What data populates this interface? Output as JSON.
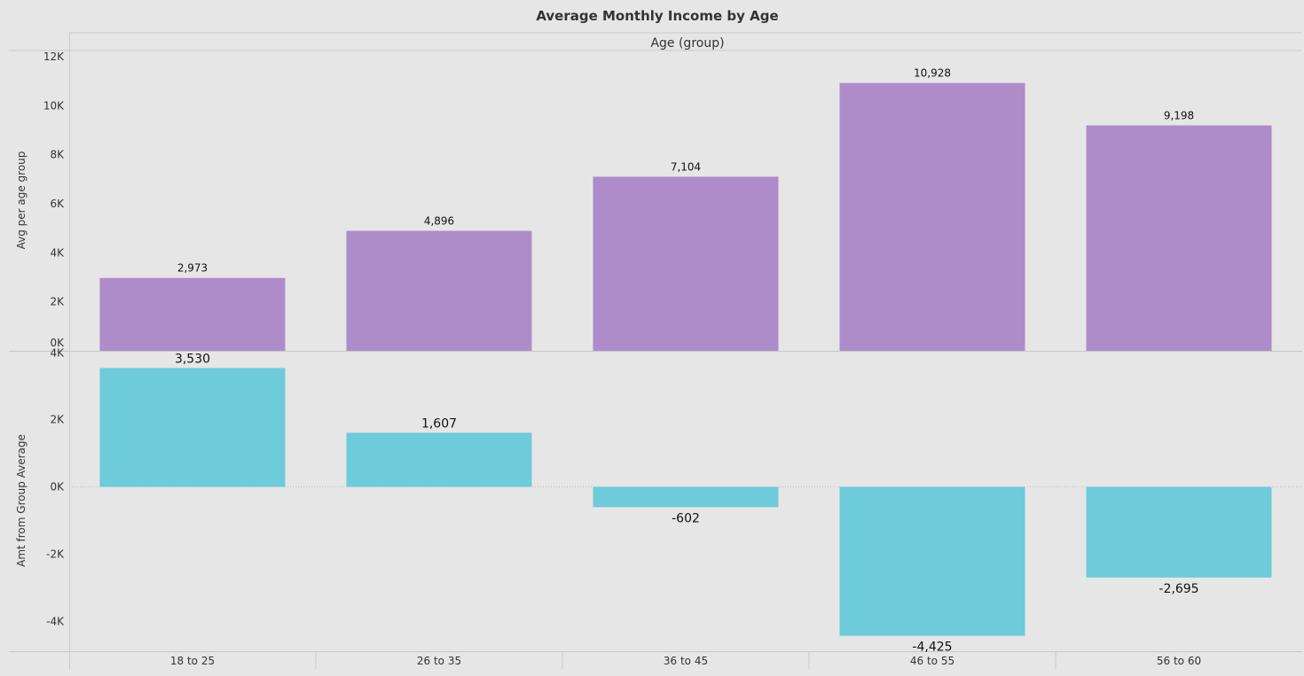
{
  "colors": {
    "background": "#e6e6e6",
    "top_bars": "#ae8cc9",
    "bottom_bars": "#6ecbd9",
    "text": "#333333"
  },
  "chart_data": [
    {
      "type": "bar",
      "title": "Average Monthly Income by Age",
      "column_header": "Age (group)",
      "categories": [
        "18 to 25",
        "26 to 35",
        "36 to 45",
        "46 to 55",
        "56 to 60"
      ],
      "values": [
        2973,
        4896,
        7104,
        10928,
        9198
      ],
      "data_labels": [
        "2,973",
        "4,896",
        "7,104",
        "10,928",
        "9,198"
      ],
      "ylabel": "Avg per age group",
      "ylim": [
        0,
        12000
      ],
      "yticks": [
        0,
        2000,
        4000,
        6000,
        8000,
        10000,
        12000
      ],
      "ytick_labels": [
        "0K",
        "2K",
        "4K",
        "6K",
        "8K",
        "10K",
        "12K"
      ],
      "grid": false
    },
    {
      "type": "bar",
      "categories": [
        "18 to 25",
        "26 to 35",
        "36 to 45",
        "46 to 55",
        "56 to 60"
      ],
      "values": [
        3530,
        1607,
        -602,
        -4425,
        -2695
      ],
      "data_labels": [
        "3,530",
        "1,607",
        "-602",
        "-4,425",
        "-2,695"
      ],
      "ylabel": "Amt from Group Average",
      "ylim": [
        -5000,
        4000
      ],
      "yticks": [
        -4000,
        -2000,
        0,
        2000,
        4000
      ],
      "ytick_labels": [
        "-4K",
        "-2K",
        "0K",
        "2K",
        "4K"
      ],
      "grid": false
    }
  ]
}
